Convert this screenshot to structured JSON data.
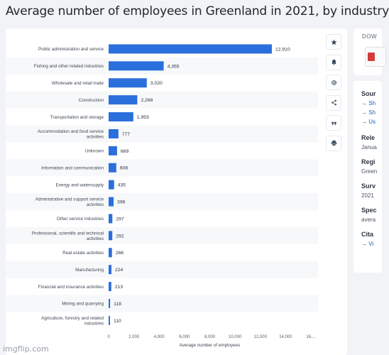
{
  "page_title": "Average number of employees in Greenland in 2021, by industry",
  "toolbar": {
    "icons": [
      "star-icon",
      "bell-icon",
      "gear-icon",
      "share-icon",
      "quote-icon",
      "print-icon"
    ]
  },
  "sidebar": {
    "download_label": "DOW",
    "source_title": "Sour",
    "source_links": [
      "Sh",
      "Sh",
      "Us"
    ],
    "release_title": "Rele",
    "release_value": "Janua",
    "region_title": "Regi",
    "region_value": "Green",
    "survey_title": "Surv",
    "survey_value": "2021",
    "special_title": "Spec",
    "special_value": "avera",
    "citation_title": "Cita",
    "citation_link": "Vi"
  },
  "watermark": "imgflip.com",
  "chart_data": {
    "type": "bar",
    "orientation": "horizontal",
    "categories": [
      "Public administration and service",
      "Fishing and other related industries",
      "Wholesale and retail trade",
      "Construction",
      "Transportation and storage",
      "Accommodation and food service activities",
      "Unknown",
      "Information and communication",
      "Energy and watersupply",
      "Administrative and support service activities",
      "Other service industries",
      "Professional, scientific and technical activities",
      "Real estate activities",
      "Manufacturing",
      "Financial and insurance activities",
      "Mining and quarrying",
      "Agriculture, forestry and related industries"
    ],
    "values": [
      12910,
      4355,
      3020,
      2268,
      1953,
      777,
      669,
      608,
      435,
      396,
      297,
      292,
      266,
      224,
      213,
      118,
      110
    ],
    "value_labels": [
      "12,910",
      "4,355",
      "3,020",
      "2,268",
      "1,953",
      "777",
      "669",
      "608",
      "435",
      "396",
      "297",
      "292",
      "266",
      "224",
      "213",
      "118",
      "110"
    ],
    "x_ticks": [
      "0",
      "2,000",
      "4,000",
      "6,000",
      "8,000",
      "10,000",
      "12,000",
      "14,000",
      "16,..."
    ],
    "xlabel": "Average number of employees",
    "ylabel": "",
    "xlim": [
      0,
      16000
    ],
    "bar_color": "#2a6fdb",
    "grid": false
  }
}
